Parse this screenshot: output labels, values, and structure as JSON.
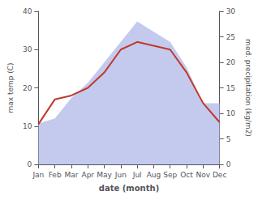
{
  "chart_data": {
    "type": "line",
    "xlabel": "date (month)",
    "ylabel": "max temp (C)",
    "y2label": "med. precipitation (kg/m2)",
    "categories": [
      "Jan",
      "Feb",
      "Mar",
      "Apr",
      "May",
      "Jun",
      "Jul",
      "Aug",
      "Sep",
      "Oct",
      "Nov",
      "Dec"
    ],
    "series": [
      {
        "type": "area",
        "axis": "y2",
        "color": "#b0b8e8",
        "values": [
          8.0,
          9.0,
          13.0,
          16.0,
          20.0,
          24.0,
          28.0,
          26.0,
          24.0,
          19.0,
          12.0,
          12.0
        ]
      },
      {
        "type": "line",
        "color": "#c0392b",
        "values": [
          10.5,
          17.0,
          18.0,
          20.0,
          24.0,
          30.0,
          32.0,
          31.0,
          30.0,
          24.0,
          16.0,
          11.0
        ]
      }
    ],
    "ylim": [
      0,
      40
    ],
    "yticks": [
      0,
      10,
      20,
      30,
      40
    ],
    "y2lim": [
      0,
      30
    ],
    "y2ticks": [
      0,
      5,
      10,
      15,
      20,
      25,
      30
    ],
    "grid": false
  }
}
